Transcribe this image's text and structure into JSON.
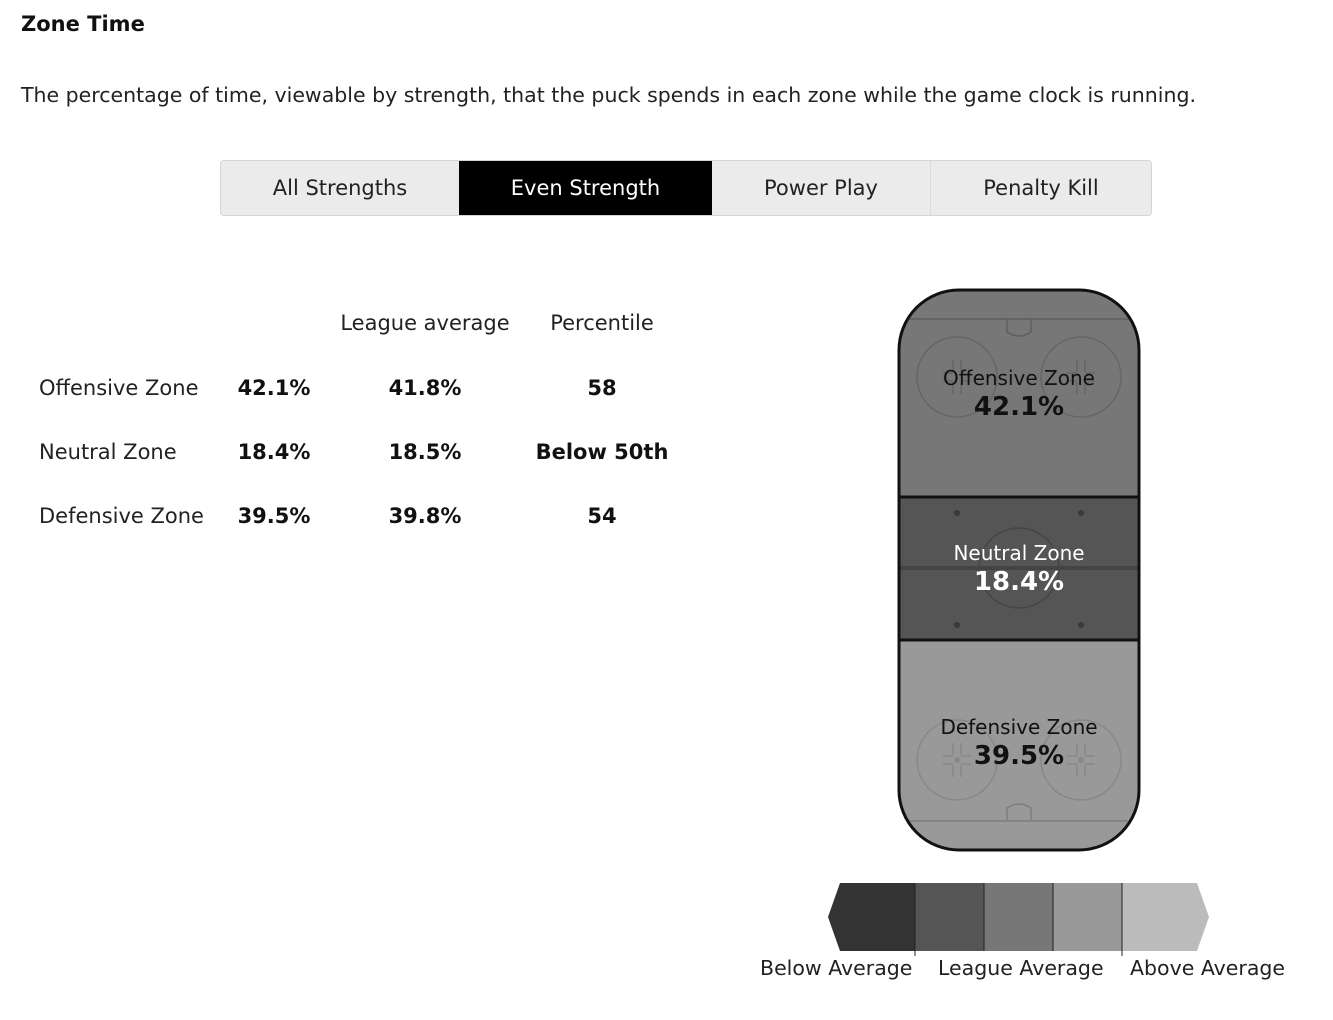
{
  "section": {
    "title": "Zone Time",
    "description": "The percentage of time, viewable by strength, that the puck spends in each zone while the game clock is running."
  },
  "tabs": [
    {
      "label": "All Strengths",
      "active": false
    },
    {
      "label": "Even Strength",
      "active": true
    },
    {
      "label": "Power Play",
      "active": false
    },
    {
      "label": "Penalty Kill",
      "active": false
    }
  ],
  "table": {
    "headers": {
      "team": "",
      "league_average": "League average",
      "percentile": "Percentile"
    },
    "rows": [
      {
        "zone": "Offensive Zone",
        "value": "42.1%",
        "league_average": "41.8%",
        "percentile": "58"
      },
      {
        "zone": "Neutral Zone",
        "value": "18.4%",
        "league_average": "18.5%",
        "percentile": "Below 50th"
      },
      {
        "zone": "Defensive Zone",
        "value": "39.5%",
        "league_average": "39.8%",
        "percentile": "54"
      }
    ]
  },
  "rink": {
    "zones": [
      {
        "name": "Offensive Zone",
        "value": "42.1%",
        "color": "#777777",
        "text_color": "#111111"
      },
      {
        "name": "Neutral Zone",
        "value": "18.4%",
        "color": "#555555",
        "text_color": "#ffffff"
      },
      {
        "name": "Defensive Zone",
        "value": "39.5%",
        "color": "#999999",
        "text_color": "#111111"
      }
    ]
  },
  "legend": {
    "colors": [
      "#333333",
      "#555555",
      "#777777",
      "#999999",
      "#bbbbbb"
    ],
    "labels": {
      "below": "Below Average",
      "league": "League Average",
      "above": "Above Average"
    }
  }
}
